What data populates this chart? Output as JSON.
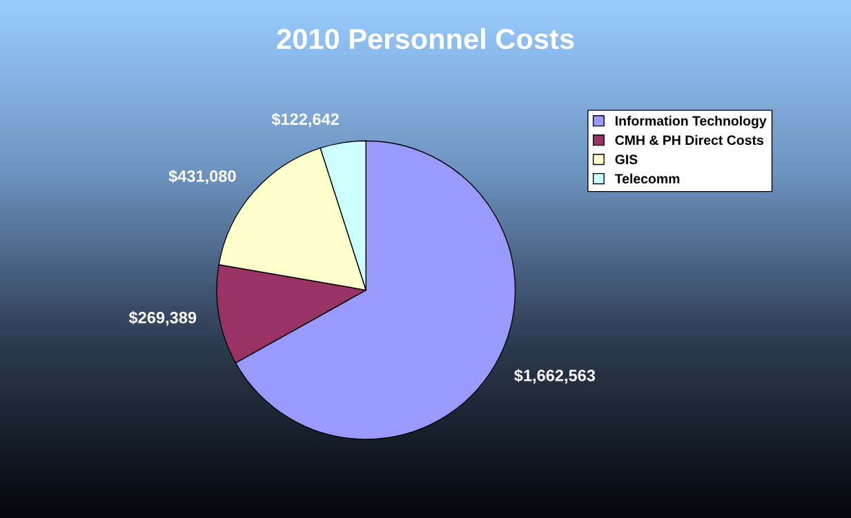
{
  "chart_data": {
    "type": "pie",
    "title": "2010 Personnel Costs",
    "categories": [
      "Information Technology",
      "CMH & PH Direct Costs",
      "GIS",
      "Telecomm"
    ],
    "values": [
      1662563,
      269389,
      431080,
      122642
    ],
    "colors": [
      "#9999ff",
      "#993366",
      "#ffffcc",
      "#ccffff"
    ],
    "value_labels": [
      "$1,662,563",
      "$269,389",
      "$431,080",
      "$122,642"
    ],
    "legend": "top right"
  }
}
